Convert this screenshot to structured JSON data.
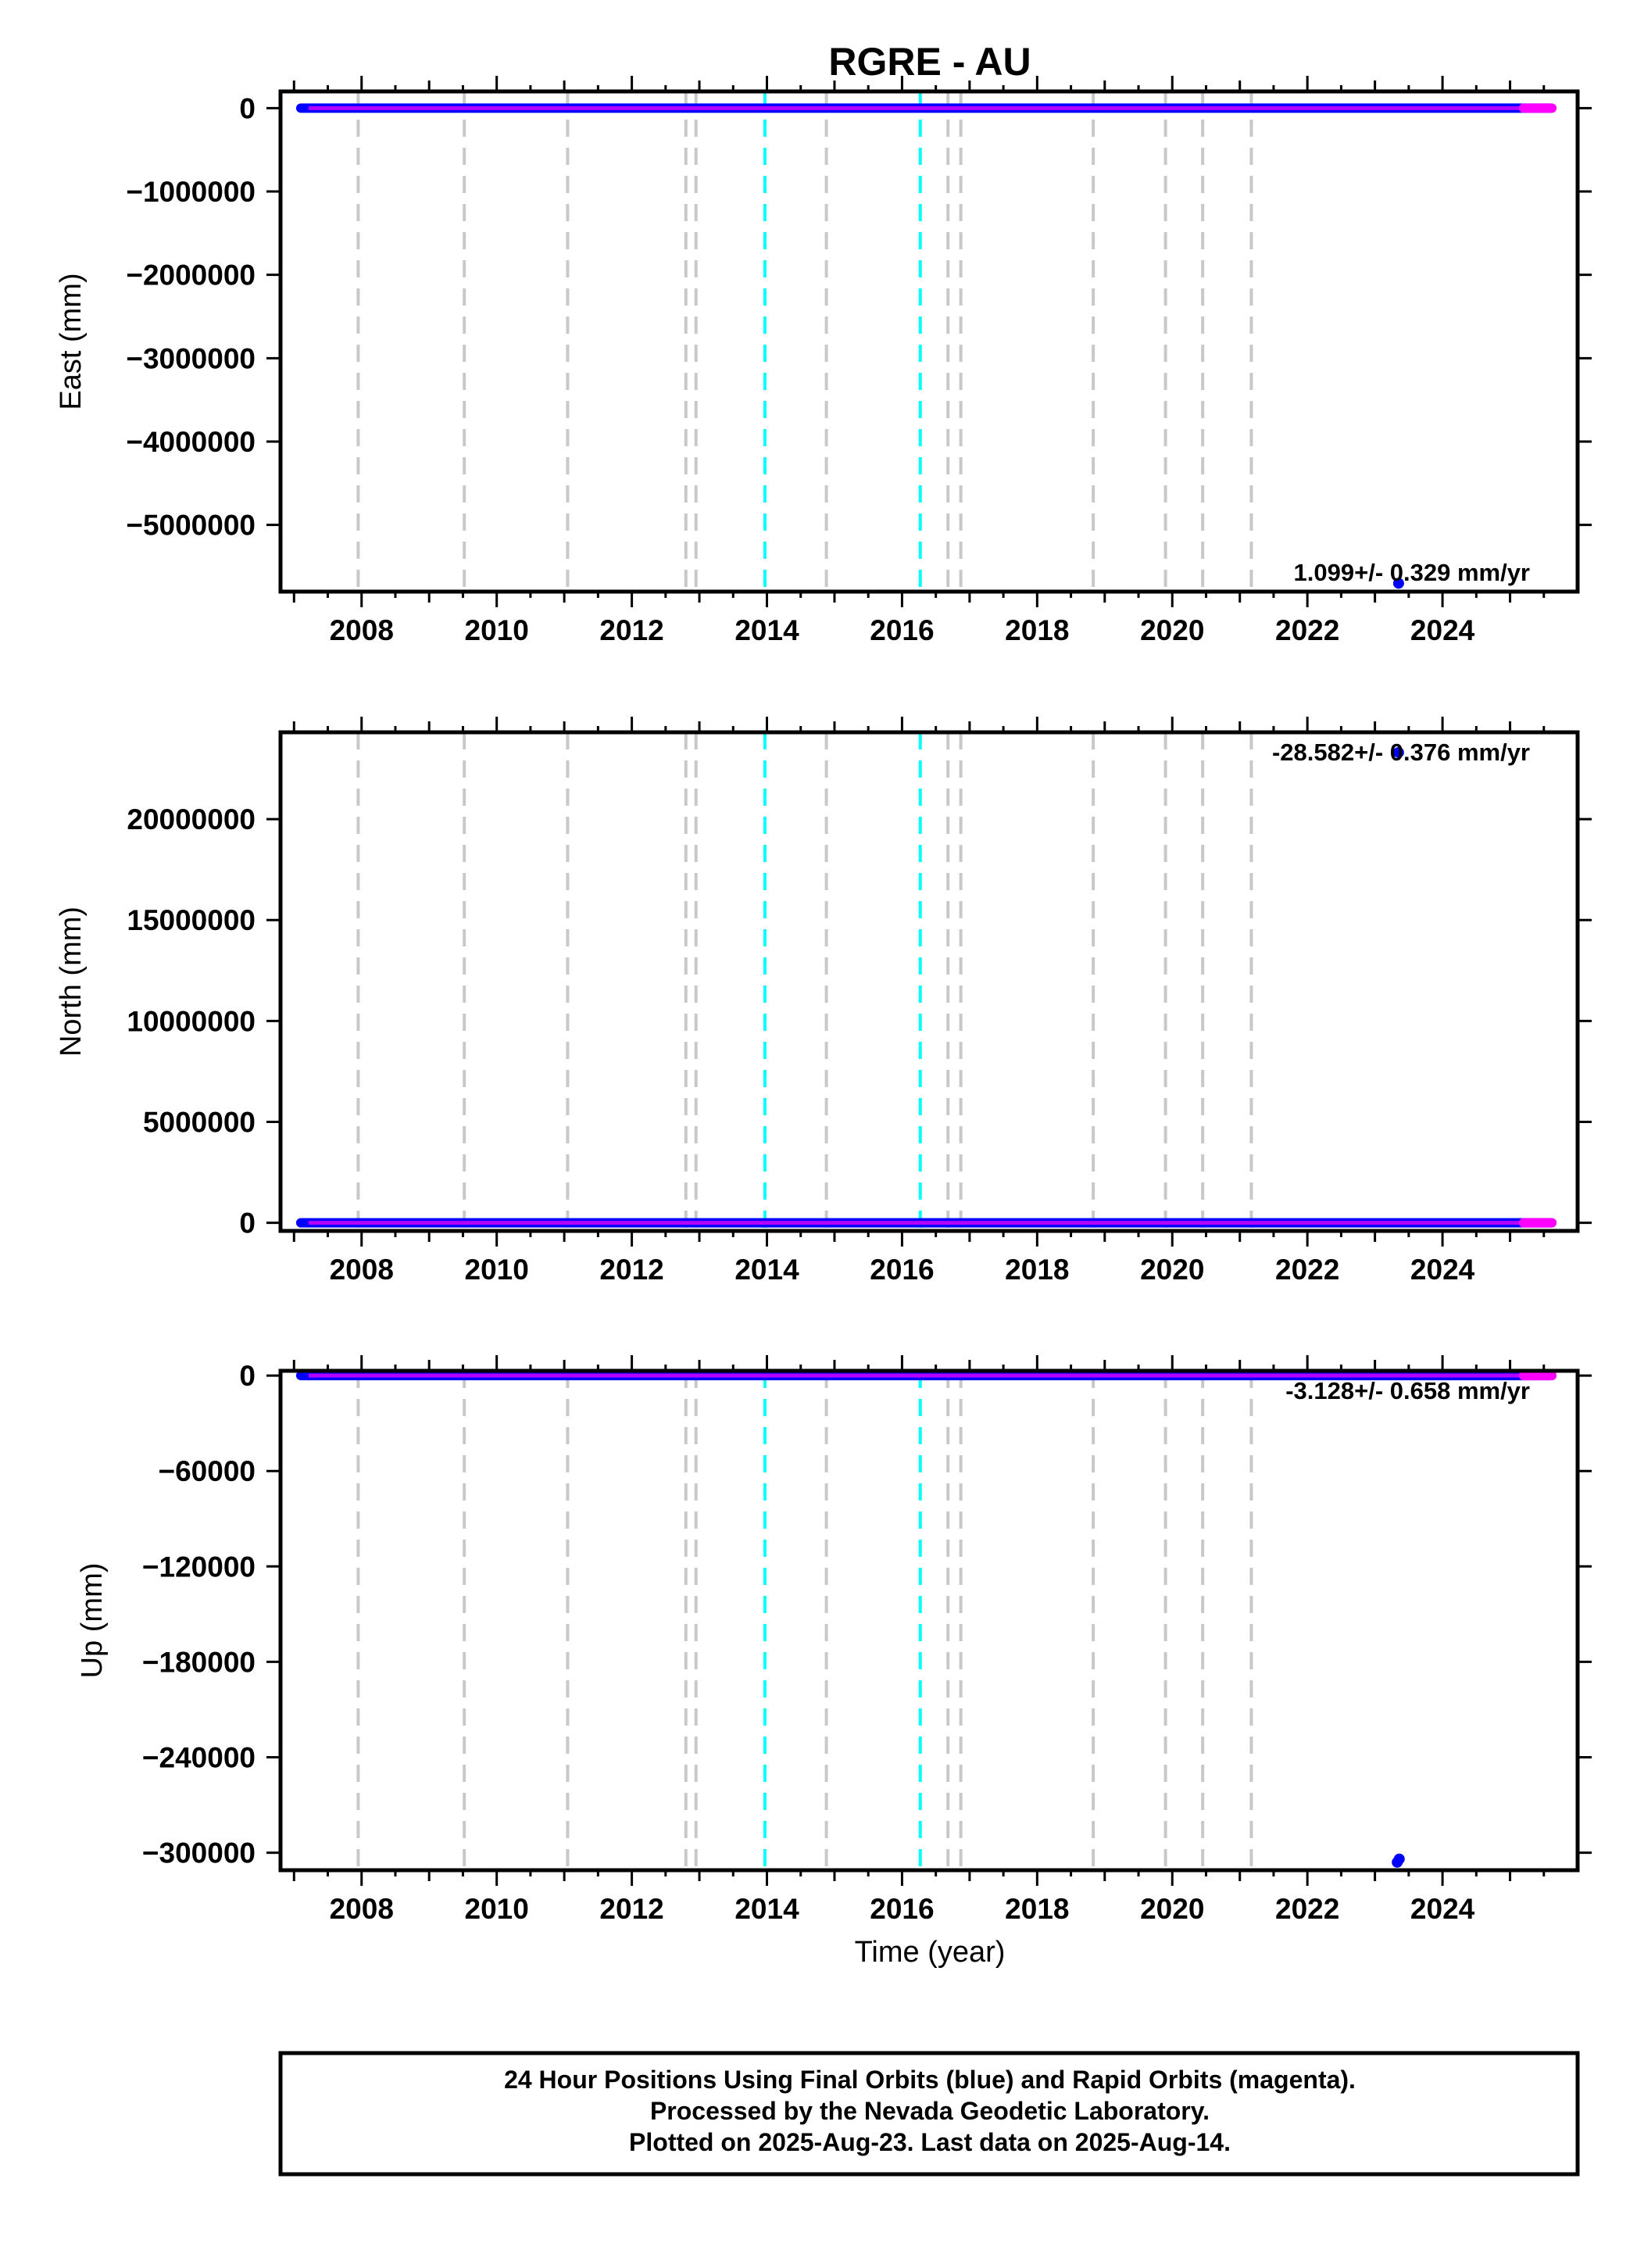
{
  "chart_data": {
    "title": "RGRE - AU",
    "type": "scatter",
    "xlabel": "Time (year)",
    "x_ticks": [
      "2008",
      "2010",
      "2012",
      "2014",
      "2016",
      "2018",
      "2020",
      "2022",
      "2024"
    ],
    "xlim": [
      2006.8,
      2026.0
    ],
    "colors": {
      "final_orbits": "#0000ff",
      "rapid_orbits": "#ff00ff",
      "equipment_change": "#c8c8c8",
      "earthquake": "#00ffff"
    },
    "equipment_change_years": [
      2007.95,
      2009.52,
      2011.05,
      2012.8,
      2012.95,
      2014.88,
      2016.68,
      2016.87,
      2018.83,
      2019.9,
      2020.45,
      2021.17
    ],
    "earthquake_years": [
      2013.97,
      2016.27
    ],
    "panels": [
      {
        "ylabel": "East (mm)",
        "y_ticks": [
          "0",
          "−1000000",
          "−2000000",
          "−3000000",
          "−4000000",
          "−5000000"
        ],
        "ylim": [
          -5800000,
          200000
        ],
        "rate_text": "1.099+/- 0.329 mm/yr",
        "series": [
          {
            "name": "Final Orbits",
            "x_range": [
              2007.1,
              2025.6
            ],
            "y": 0
          },
          {
            "name": "Rapid Orbits",
            "x_range": [
              2025.2,
              2025.62
            ],
            "y": 0
          }
        ],
        "outliers": [
          [
            2023.35,
            -5700000
          ]
        ]
      },
      {
        "ylabel": "North (mm)",
        "y_ticks": [
          "0",
          "5000000",
          "10000000",
          "15000000",
          "20000000"
        ],
        "ylim": [
          -400000,
          24300000
        ],
        "rate_text": "-28.582+/- 0.376 mm/yr",
        "series": [
          {
            "name": "Final Orbits",
            "x_range": [
              2007.1,
              2025.6
            ],
            "y": 0
          },
          {
            "name": "Rapid Orbits",
            "x_range": [
              2025.2,
              2025.62
            ],
            "y": 0
          }
        ],
        "outliers": [
          [
            2023.35,
            23300000
          ]
        ]
      },
      {
        "ylabel": "Up (mm)",
        "y_ticks": [
          "0",
          "−60000",
          "−120000",
          "−180000",
          "−240000",
          "−300000"
        ],
        "ylim": [
          -311000,
          3000
        ],
        "rate_text": "-3.128+/- 0.658 mm/yr",
        "series": [
          {
            "name": "Final Orbits",
            "x_range": [
              2007.1,
              2025.6
            ],
            "y": 0
          },
          {
            "name": "Rapid Orbits",
            "x_range": [
              2025.2,
              2025.62
            ],
            "y": 0
          }
        ],
        "outliers": [
          [
            2023.33,
            -306000
          ],
          [
            2023.36,
            -304000
          ]
        ]
      }
    ]
  },
  "footer": {
    "line1": "24 Hour Positions Using Final Orbits (blue) and Rapid Orbits (magenta).",
    "line2": "Processed by the Nevada Geodetic Laboratory.",
    "line3": "Plotted on 2025-Aug-23. Last data on 2025-Aug-14."
  }
}
